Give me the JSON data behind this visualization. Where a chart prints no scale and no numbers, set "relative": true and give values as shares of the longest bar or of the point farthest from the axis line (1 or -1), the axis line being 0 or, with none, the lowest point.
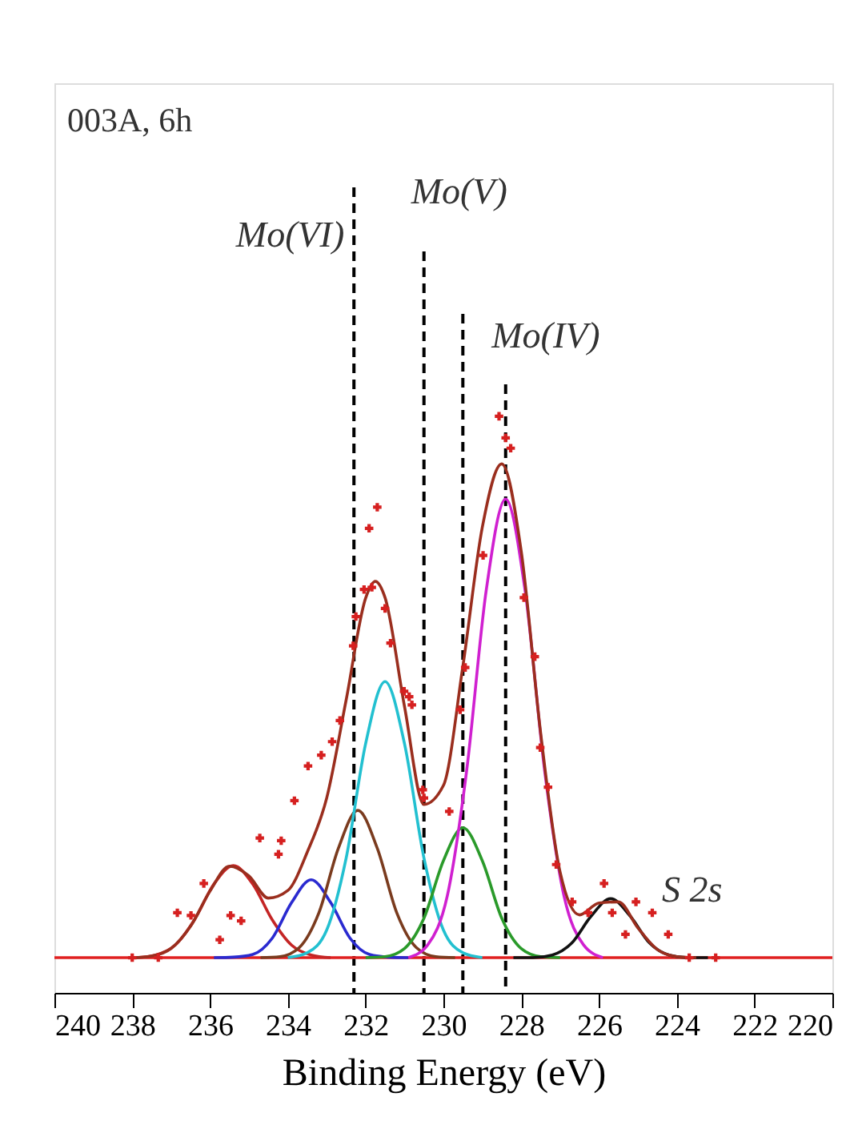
{
  "chart_data": {
    "type": "line",
    "relative": true,
    "xlabel": "Binding Energy (eV)",
    "xlim": [
      240,
      220
    ],
    "xticks": [
      240,
      238,
      236,
      234,
      232,
      230,
      228,
      226,
      224,
      222,
      220
    ],
    "grid": false,
    "line_style": "solid",
    "annotations": [
      "003A, 6h",
      {
        "text": "S 2s",
        "x": 225.7,
        "y": 0.109
      }
    ],
    "ref_lines": [
      {
        "axis": "x",
        "value": 232.3,
        "label": "Mo(VI)",
        "color": "#000000",
        "line_style": "dashed"
      },
      {
        "axis": "x",
        "value": 230.5,
        "label": "Mo(V)",
        "color": "#000000",
        "line_style": "dashed"
      },
      {
        "axis": "x",
        "value": 229.5,
        "label": "Mo(IV)",
        "color": "#000000",
        "line_style": "dashed"
      },
      {
        "axis": "x",
        "value": 228.4,
        "label": null,
        "color": "#000000",
        "line_style": "dashed"
      }
    ],
    "series": [
      {
        "type": "line",
        "color": "#e02020",
        "x": [
          240,
          220
        ],
        "values": [
          0,
          0
        ]
      },
      {
        "type": "line",
        "color": "#c42525",
        "x": [
          237.9,
          237.4,
          236.9,
          236.4,
          235.9,
          235.4,
          234.9,
          234.4,
          233.9,
          233.4,
          232.9
        ],
        "values": [
          0,
          0.005,
          0.023,
          0.07,
          0.136,
          0.17,
          0.136,
          0.07,
          0.023,
          0.005,
          0
        ]
      },
      {
        "type": "line",
        "color": "#2a2ad0",
        "x": [
          235.9,
          235.4,
          234.9,
          234.4,
          233.9,
          233.4,
          232.9,
          232.4,
          231.9,
          231.4,
          230.9
        ],
        "values": [
          0,
          0.001,
          0.006,
          0.036,
          0.102,
          0.144,
          0.102,
          0.036,
          0.006,
          0.001,
          0
        ]
      },
      {
        "type": "line",
        "color": "#7a3b1e",
        "x": [
          234.7,
          234.2,
          233.7,
          233.2,
          232.7,
          232.2,
          231.7,
          231.2,
          230.7,
          230.2,
          229.7
        ],
        "values": [
          0,
          0.002,
          0.019,
          0.083,
          0.202,
          0.272,
          0.202,
          0.083,
          0.019,
          0.002,
          0
        ]
      },
      {
        "type": "line",
        "color": "#22c0d0",
        "x": [
          234.0,
          233.5,
          233.0,
          232.5,
          232.0,
          231.5,
          231.0,
          230.5,
          230.0,
          229.5,
          229.0
        ],
        "values": [
          0,
          0.009,
          0.051,
          0.184,
          0.395,
          0.51,
          0.395,
          0.184,
          0.051,
          0.009,
          0
        ]
      },
      {
        "type": "line",
        "color": "#2a9a2a",
        "x": [
          232.0,
          231.5,
          231.0,
          230.5,
          230.0,
          229.5,
          229.0,
          228.5,
          228.0,
          227.5,
          227.0
        ],
        "values": [
          0,
          0.002,
          0.017,
          0.073,
          0.179,
          0.24,
          0.179,
          0.073,
          0.017,
          0.002,
          0
        ]
      },
      {
        "type": "line",
        "color": "#d020d0",
        "x": [
          230.9,
          230.4,
          229.9,
          229.4,
          228.9,
          228.4,
          227.9,
          227.4,
          226.9,
          226.4,
          225.9
        ],
        "values": [
          0,
          0.024,
          0.114,
          0.347,
          0.678,
          0.847,
          0.678,
          0.347,
          0.114,
          0.024,
          0
        ]
      },
      {
        "type": "line",
        "color": "#111111",
        "x": [
          228.2,
          227.7,
          227.2,
          226.7,
          226.2,
          225.7,
          225.2,
          224.7,
          224.2,
          223.7,
          223.2
        ],
        "values": [
          0,
          0,
          0.005,
          0.027,
          0.077,
          0.109,
          0.077,
          0.027,
          0.005,
          0,
          0
        ]
      },
      {
        "type": "line",
        "color": "#9a2e1e",
        "x": [
          238,
          237.5,
          237,
          236.5,
          236,
          235.5,
          235,
          234.5,
          234,
          233.5,
          233,
          232.5,
          232,
          231.75,
          231.5,
          231,
          230.5,
          230,
          229.5,
          229,
          228.5,
          228,
          227.5,
          227,
          226.5,
          226,
          225.5,
          225,
          224.5,
          224,
          223.5
        ],
        "values": [
          0,
          0.003,
          0.017,
          0.058,
          0.123,
          0.169,
          0.151,
          0.11,
          0.124,
          0.195,
          0.295,
          0.476,
          0.664,
          0.695,
          0.665,
          0.464,
          0.283,
          0.318,
          0.538,
          0.795,
          0.912,
          0.751,
          0.415,
          0.158,
          0.079,
          0.101,
          0.103,
          0.055,
          0.015,
          0.002,
          0
        ]
      },
      {
        "type": "scatter",
        "color": "#d62020",
        "marker": "cross",
        "x": [
          238,
          237.33,
          236.84,
          236.49,
          236.16,
          235.75,
          235.47,
          235.2,
          234.72,
          234.17,
          234.24,
          233.83,
          233.48,
          233.14,
          232.86,
          232.66,
          232.32,
          232.25,
          232.04,
          231.91,
          231.7,
          231.84,
          231.5,
          231.36,
          231.01,
          230.81,
          230.88,
          230.53,
          230.5,
          229.85,
          229.44,
          229.57,
          228.98,
          228.57,
          228.4,
          228.27,
          227.93,
          227.65,
          227.51,
          227.31,
          227.1,
          226.69,
          226.28,
          225.87,
          225.66,
          225.32,
          225.05,
          224.63,
          224.22,
          223.68,
          223
        ],
        "values": [
          0,
          0,
          0.083,
          0.078,
          0.137,
          0.033,
          0.078,
          0.068,
          0.221,
          0.216,
          0.191,
          0.29,
          0.354,
          0.374,
          0.399,
          0.438,
          0.576,
          0.63,
          0.68,
          0.793,
          0.832,
          0.684,
          0.645,
          0.581,
          0.492,
          0.467,
          0.482,
          0.31,
          0.295,
          0.27,
          0.536,
          0.458,
          0.743,
          1,
          0.96,
          0.941,
          0.665,
          0.556,
          0.388,
          0.315,
          0.172,
          0.103,
          0.083,
          0.137,
          0.083,
          0.043,
          0.103,
          0.083,
          0.043,
          0,
          0
        ]
      }
    ]
  }
}
